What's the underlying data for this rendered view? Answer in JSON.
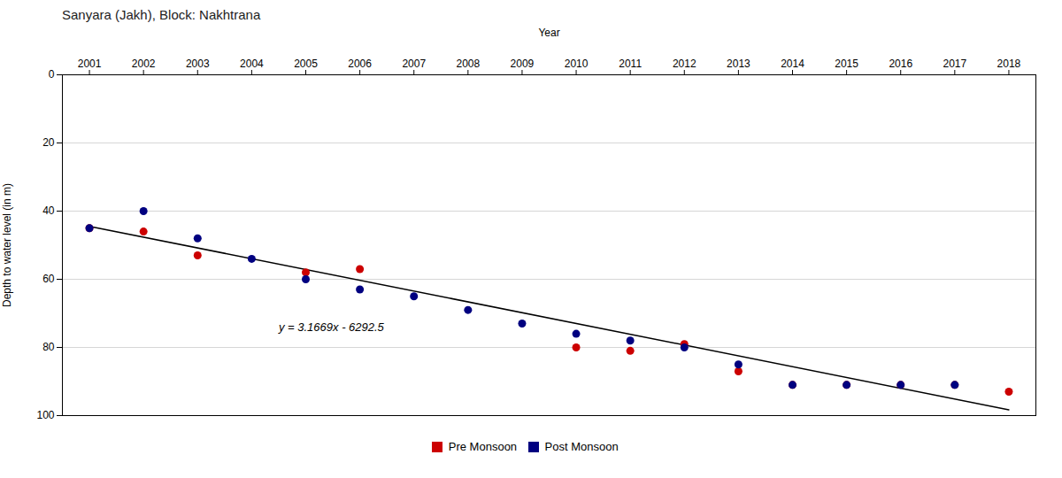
{
  "chart_data": {
    "type": "scatter",
    "title": "Sanyara (Jakh), Block: Nakhtrana",
    "xlabel": "Year",
    "ylabel": "Depth to water level (in m)",
    "x": [
      2001,
      2002,
      2003,
      2004,
      2005,
      2006,
      2007,
      2008,
      2009,
      2010,
      2011,
      2012,
      2013,
      2014,
      2015,
      2016,
      2017,
      2018
    ],
    "series": [
      {
        "name": "Pre Monsoon",
        "color": "#cc0000",
        "type": "scatter",
        "values": [
          45,
          46,
          53,
          null,
          58,
          57,
          null,
          null,
          null,
          80,
          81,
          79,
          87,
          91,
          91,
          91,
          91,
          93
        ]
      },
      {
        "name": "Post Monsoon",
        "color": "#000080",
        "type": "scatter",
        "values": [
          45,
          40,
          48,
          54,
          60,
          63,
          65,
          69,
          73,
          76,
          78,
          80,
          85,
          91,
          91,
          91,
          91,
          null
        ]
      },
      {
        "color": "#000000",
        "type": "line",
        "x": [
          2001,
          2018
        ],
        "values": [
          44.4669,
          98.3042
        ]
      }
    ],
    "annotations": [
      {
        "text": "y = 3.1669x - 6292.5",
        "x": 2004.5,
        "y": 74
      }
    ],
    "xlim": [
      2000.5,
      2018.5
    ],
    "xticks": [
      2001,
      2002,
      2003,
      2004,
      2005,
      2006,
      2007,
      2008,
      2009,
      2010,
      2011,
      2012,
      2013,
      2014,
      2015,
      2016,
      2017,
      2018
    ],
    "ylim": [
      100,
      0
    ],
    "yticks": [
      0,
      20,
      40,
      60,
      80,
      100
    ],
    "grid": "y",
    "legend": "bottom"
  }
}
